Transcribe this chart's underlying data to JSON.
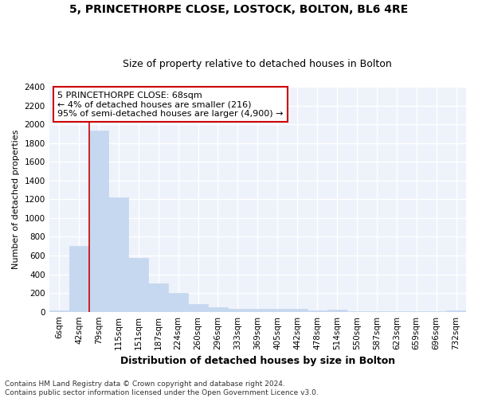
{
  "title1": "5, PRINCETHORPE CLOSE, LOSTOCK, BOLTON, BL6 4RE",
  "title2": "Size of property relative to detached houses in Bolton",
  "xlabel": "Distribution of detached houses by size in Bolton",
  "ylabel": "Number of detached properties",
  "categories": [
    "6sqm",
    "42sqm",
    "79sqm",
    "115sqm",
    "151sqm",
    "187sqm",
    "224sqm",
    "260sqm",
    "296sqm",
    "333sqm",
    "369sqm",
    "405sqm",
    "442sqm",
    "478sqm",
    "514sqm",
    "550sqm",
    "587sqm",
    "623sqm",
    "659sqm",
    "696sqm",
    "732sqm"
  ],
  "values": [
    15,
    700,
    1930,
    1220,
    575,
    305,
    200,
    80,
    45,
    35,
    35,
    30,
    30,
    15,
    20,
    5,
    5,
    5,
    3,
    3,
    15
  ],
  "bar_color": "#c5d8ef",
  "bar_edge_color": "#c5d8ef",
  "annotation_text": "5 PRINCETHORPE CLOSE: 68sqm\n← 4% of detached houses are smaller (216)\n95% of semi-detached houses are larger (4,900) →",
  "annotation_box_facecolor": "#ffffff",
  "annotation_box_edgecolor": "#cc0000",
  "vline_x": 1.5,
  "vline_color": "#cc0000",
  "ylim": [
    0,
    2400
  ],
  "yticks": [
    0,
    200,
    400,
    600,
    800,
    1000,
    1200,
    1400,
    1600,
    1800,
    2000,
    2200,
    2400
  ],
  "fig_facecolor": "#ffffff",
  "axes_facecolor": "#eef2fb",
  "grid_color": "#ffffff",
  "footer_text": "Contains HM Land Registry data © Crown copyright and database right 2024.\nContains public sector information licensed under the Open Government Licence v3.0.",
  "title1_fontsize": 10,
  "title2_fontsize": 9,
  "xlabel_fontsize": 9,
  "ylabel_fontsize": 8,
  "tick_fontsize": 7.5,
  "annotation_fontsize": 8,
  "footer_fontsize": 6.5
}
